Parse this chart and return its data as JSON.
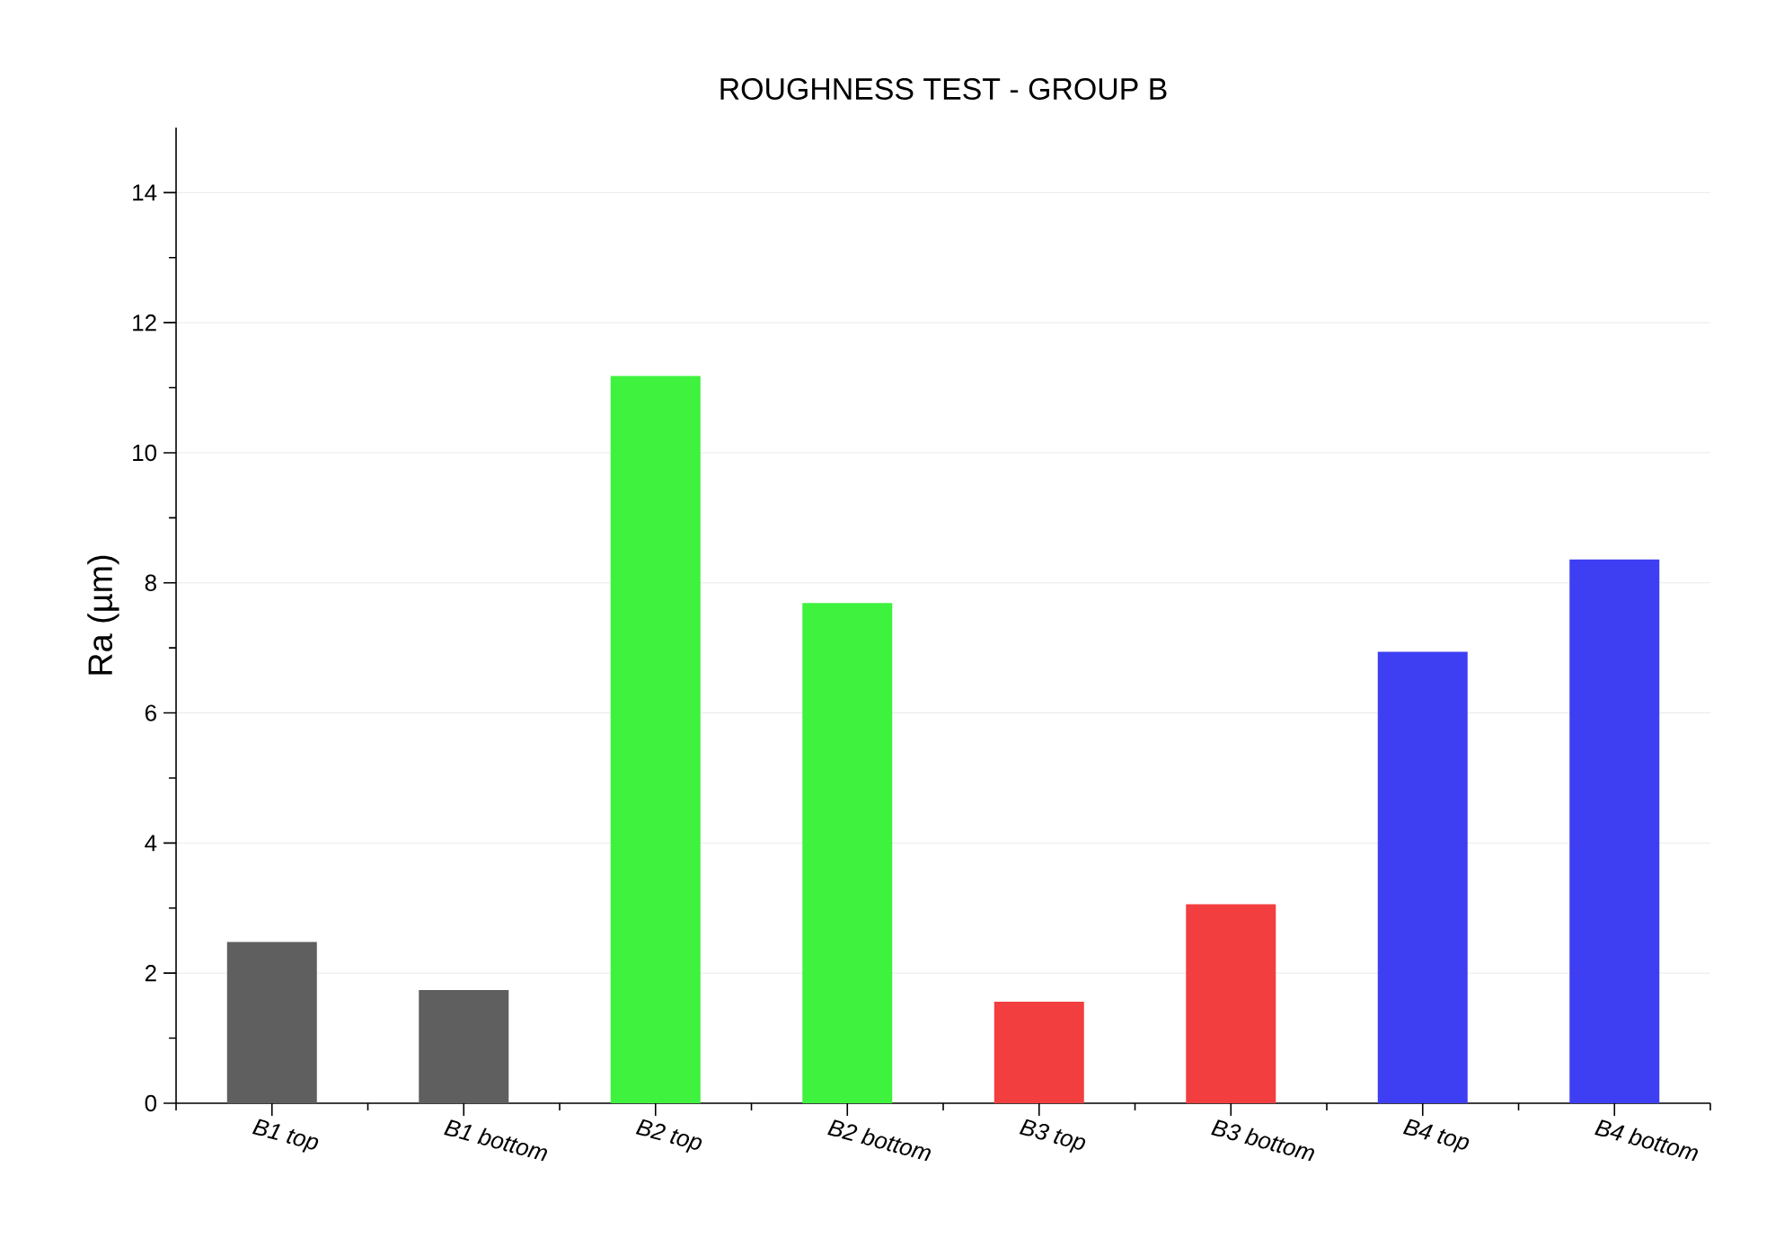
{
  "chart_data": {
    "type": "bar",
    "title": "ROUGHNESS TEST - GROUP B",
    "ylabel": "Ra (µm)",
    "categories": [
      "B1 top",
      "B1 bottom",
      "B2 top",
      "B2 bottom",
      "B3 top",
      "B3 bottom",
      "B4 top",
      "B4 bottom"
    ],
    "values": [
      2.48,
      1.74,
      11.18,
      7.69,
      1.56,
      3.06,
      6.94,
      8.36
    ],
    "colors": [
      "#5f5f5f",
      "#5f5f5f",
      "#3ef23e",
      "#3ef23e",
      "#f23e3e",
      "#f23e3e",
      "#3e3ef2",
      "#3e3ef2"
    ],
    "ylim": [
      0,
      15
    ],
    "yticks": [
      0,
      2,
      4,
      6,
      8,
      10,
      12,
      14
    ],
    "grid": "y"
  }
}
